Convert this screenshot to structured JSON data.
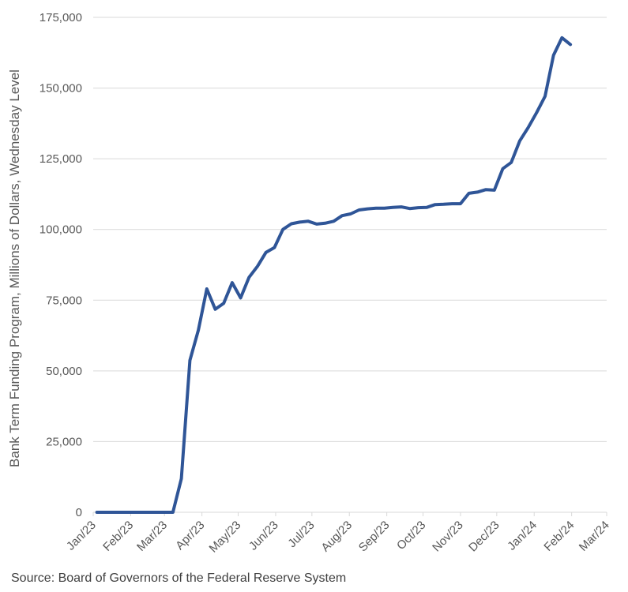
{
  "chart_data": {
    "type": "line",
    "title": "",
    "ylabel": "Bank Term Funding Program, Millions of Dollars, Wednesday Level",
    "xlabel": "",
    "ylim": [
      0,
      175000
    ],
    "y_ticks": [
      0,
      25000,
      50000,
      75000,
      100000,
      125000,
      150000,
      175000
    ],
    "y_tick_labels": [
      "0",
      "25,000",
      "50,000",
      "75,000",
      "100,000",
      "125,000",
      "150,000",
      "175,000"
    ],
    "x_tick_dates": [
      "2023-01-01",
      "2023-02-01",
      "2023-03-01",
      "2023-04-01",
      "2023-05-01",
      "2023-06-01",
      "2023-07-01",
      "2023-08-01",
      "2023-09-01",
      "2023-10-01",
      "2023-11-01",
      "2023-12-01",
      "2024-01-01",
      "2024-02-01",
      "2024-03-01"
    ],
    "x_tick_labels": [
      "Jan/23",
      "Feb/23",
      "Mar/23",
      "Apr/23",
      "May/23",
      "Jun/23",
      "Jul/23",
      "Aug/23",
      "Sep/23",
      "Oct/23",
      "Nov/23",
      "Dec/23",
      "Jan/24",
      "Feb/24",
      "Mar/24"
    ],
    "xlim": [
      "2023-01-01",
      "2024-03-01"
    ],
    "grid": "horizontal",
    "line_color": "#2f5597",
    "series": [
      {
        "points": [
          [
            "2023-01-04",
            0
          ],
          [
            "2023-01-11",
            0
          ],
          [
            "2023-01-18",
            0
          ],
          [
            "2023-01-25",
            0
          ],
          [
            "2023-02-01",
            0
          ],
          [
            "2023-02-08",
            0
          ],
          [
            "2023-02-15",
            0
          ],
          [
            "2023-02-22",
            0
          ],
          [
            "2023-03-01",
            0
          ],
          [
            "2023-03-08",
            0
          ],
          [
            "2023-03-15",
            11900
          ],
          [
            "2023-03-22",
            53700
          ],
          [
            "2023-03-29",
            64400
          ],
          [
            "2023-04-05",
            79000
          ],
          [
            "2023-04-12",
            71800
          ],
          [
            "2023-04-19",
            73900
          ],
          [
            "2023-04-26",
            81200
          ],
          [
            "2023-05-03",
            75800
          ],
          [
            "2023-05-10",
            83100
          ],
          [
            "2023-05-17",
            87000
          ],
          [
            "2023-05-24",
            91900
          ],
          [
            "2023-05-31",
            93600
          ],
          [
            "2023-06-07",
            100000
          ],
          [
            "2023-06-14",
            102000
          ],
          [
            "2023-06-21",
            102600
          ],
          [
            "2023-06-28",
            102900
          ],
          [
            "2023-07-05",
            101900
          ],
          [
            "2023-07-12",
            102200
          ],
          [
            "2023-07-19",
            102900
          ],
          [
            "2023-07-26",
            104900
          ],
          [
            "2023-08-02",
            105500
          ],
          [
            "2023-08-09",
            106900
          ],
          [
            "2023-08-16",
            107300
          ],
          [
            "2023-08-23",
            107500
          ],
          [
            "2023-08-30",
            107500
          ],
          [
            "2023-09-06",
            107800
          ],
          [
            "2023-09-13",
            108000
          ],
          [
            "2023-09-20",
            107400
          ],
          [
            "2023-09-27",
            107700
          ],
          [
            "2023-10-04",
            107800
          ],
          [
            "2023-10-11",
            108800
          ],
          [
            "2023-10-18",
            108900
          ],
          [
            "2023-10-25",
            109100
          ],
          [
            "2023-11-01",
            109100
          ],
          [
            "2023-11-08",
            112800
          ],
          [
            "2023-11-15",
            113200
          ],
          [
            "2023-11-22",
            114100
          ],
          [
            "2023-11-29",
            113900
          ],
          [
            "2023-12-06",
            121500
          ],
          [
            "2023-12-13",
            123700
          ],
          [
            "2023-12-20",
            131300
          ],
          [
            "2023-12-27",
            136000
          ],
          [
            "2024-01-03",
            141300
          ],
          [
            "2024-01-10",
            147100
          ],
          [
            "2024-01-17",
            161600
          ],
          [
            "2024-01-24",
            167800
          ],
          [
            "2024-01-31",
            165400
          ]
        ]
      }
    ]
  },
  "source": "Source: Board of Governors of the Federal Reserve System"
}
